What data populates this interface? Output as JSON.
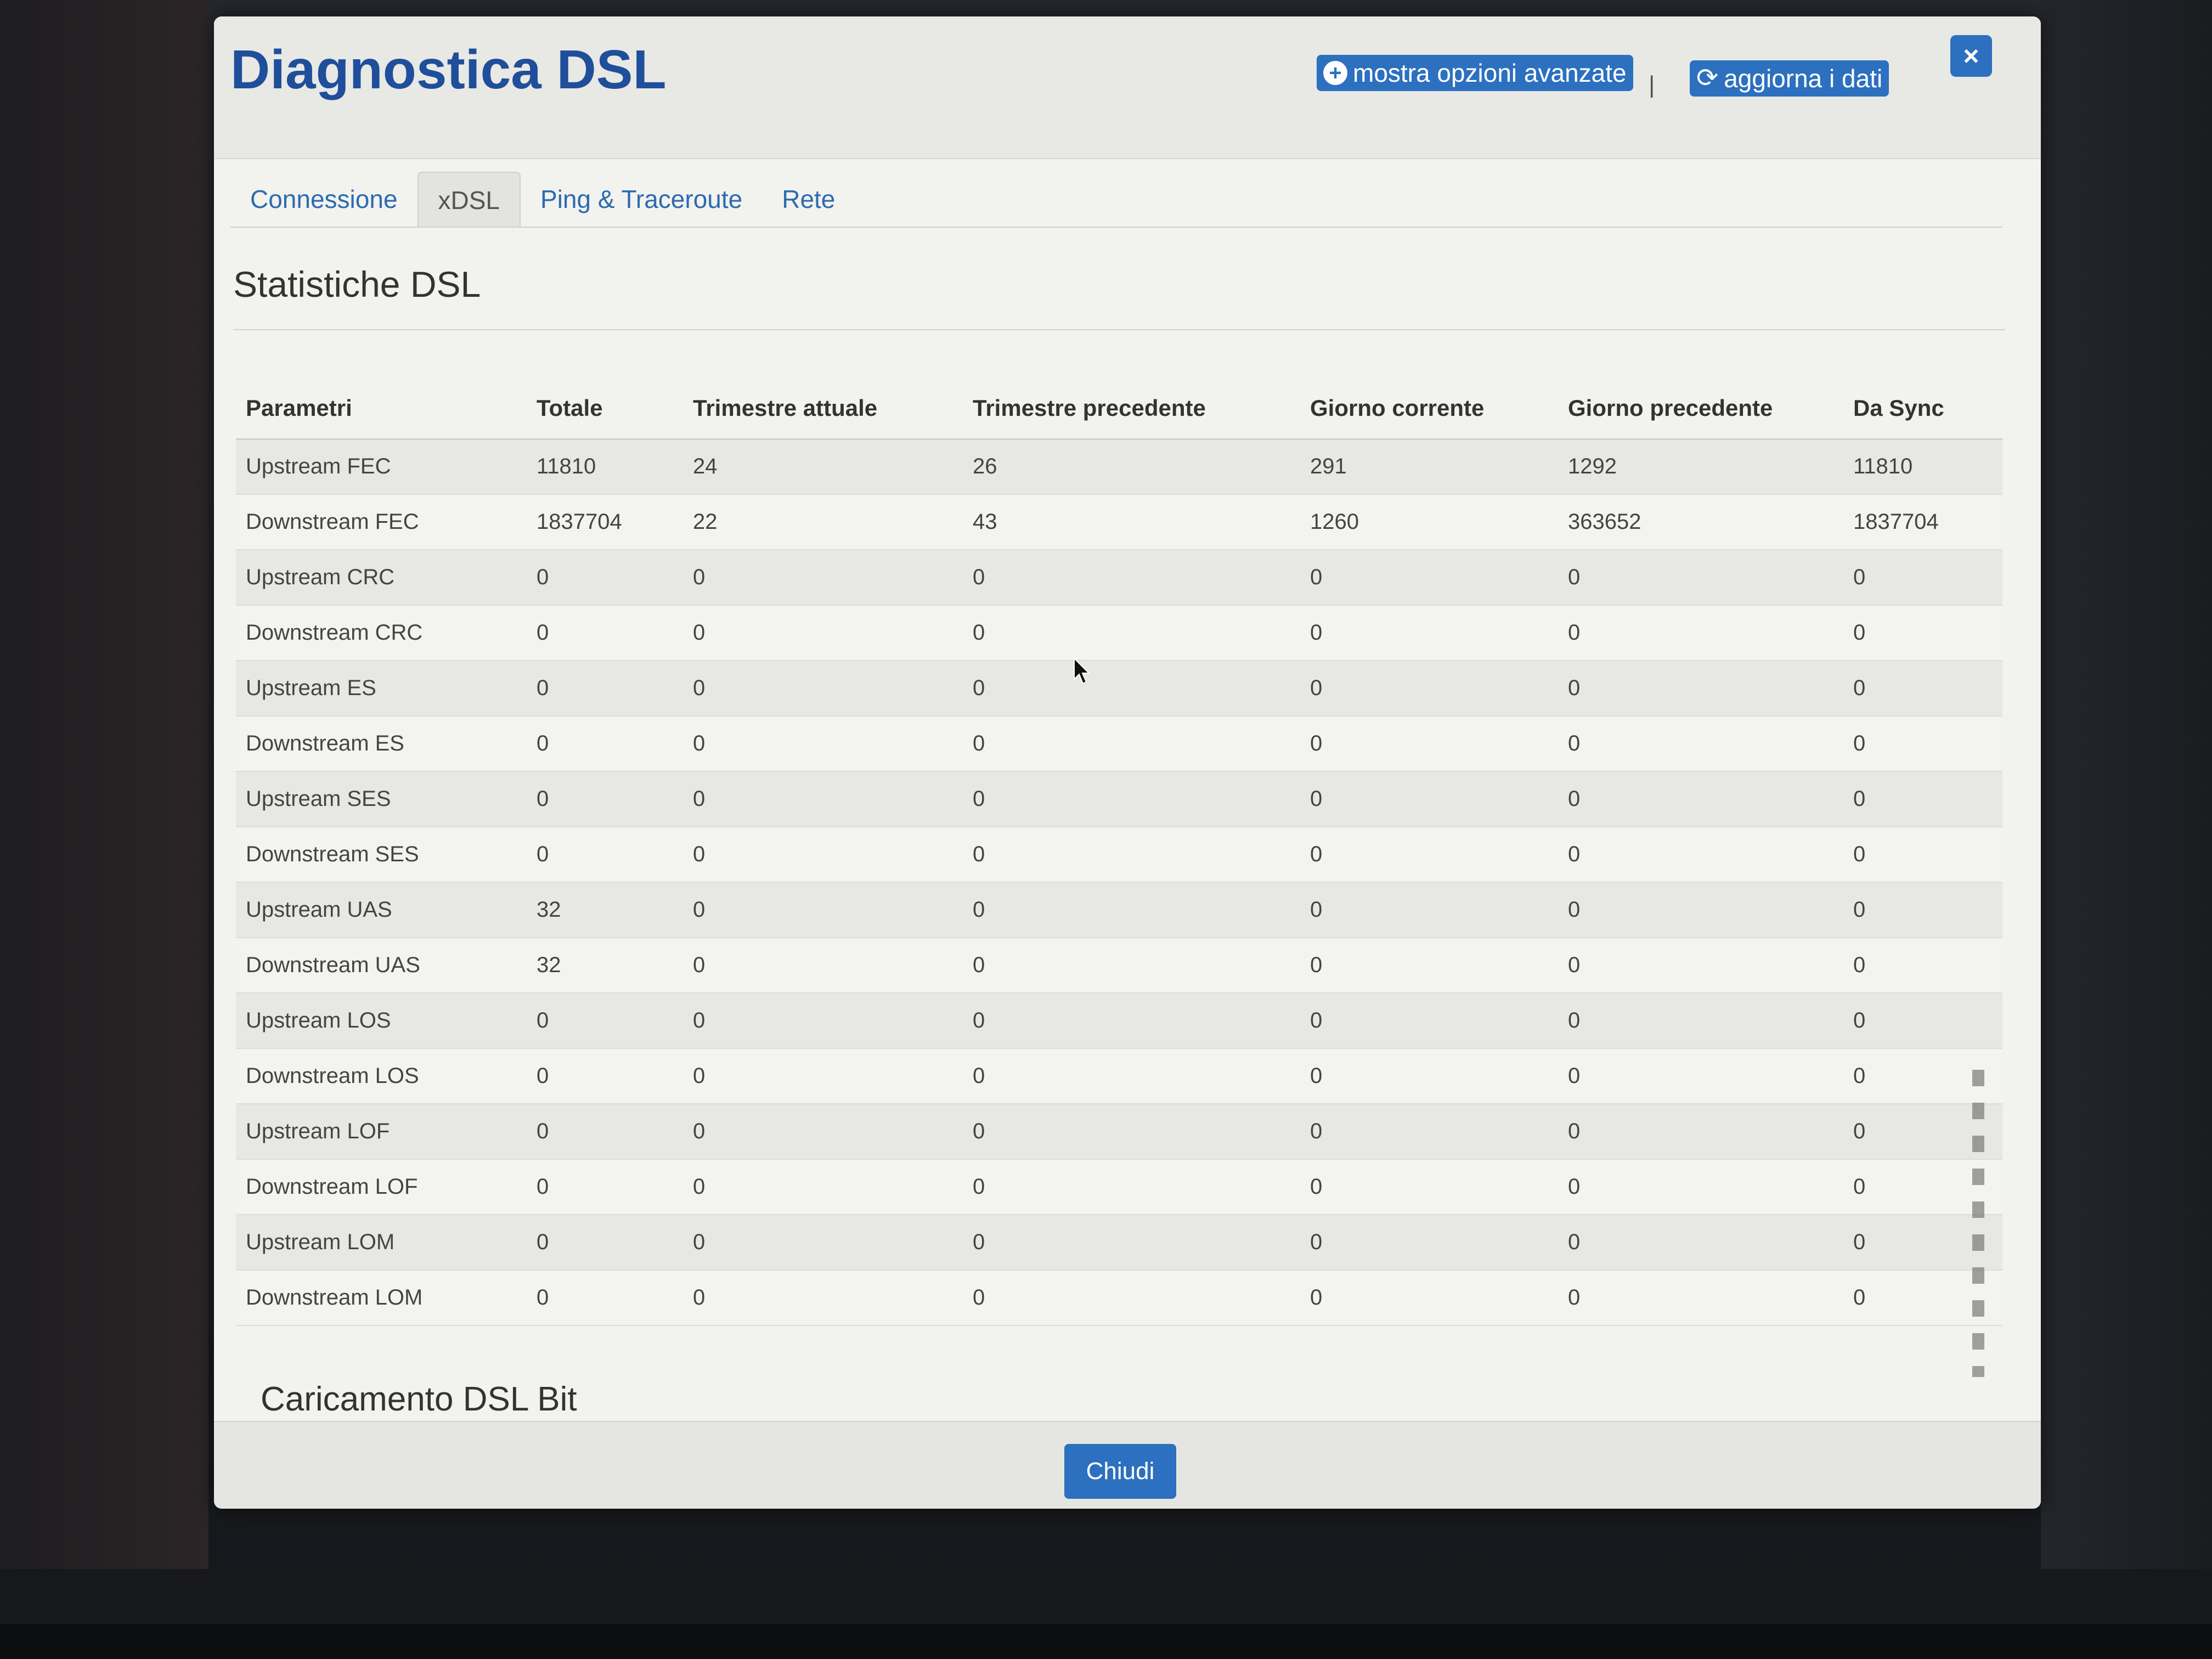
{
  "modal": {
    "title": "Diagnostica DSL",
    "advanced_label": "mostra opzioni avanzate",
    "separator": "|",
    "refresh_label": "aggiorna i dati",
    "close_label": "×"
  },
  "tabs": [
    {
      "label": "Connessione"
    },
    {
      "label": "xDSL"
    },
    {
      "label": "Ping & Traceroute"
    },
    {
      "label": "Rete"
    }
  ],
  "section": {
    "title": "Statistiche DSL",
    "next_title": "Caricamento DSL Bit"
  },
  "table": {
    "headers": [
      "Parametri",
      "Totale",
      "Trimestre attuale",
      "Trimestre precedente",
      "Giorno corrente",
      "Giorno precedente",
      "Da Sync"
    ],
    "rows": [
      [
        "Upstream FEC",
        "11810",
        "24",
        "26",
        "291",
        "1292",
        "11810"
      ],
      [
        "Downstream FEC",
        "1837704",
        "22",
        "43",
        "1260",
        "363652",
        "1837704"
      ],
      [
        "Upstream CRC",
        "0",
        "0",
        "0",
        "0",
        "0",
        "0"
      ],
      [
        "Downstream CRC",
        "0",
        "0",
        "0",
        "0",
        "0",
        "0"
      ],
      [
        "Upstream ES",
        "0",
        "0",
        "0",
        "0",
        "0",
        "0"
      ],
      [
        "Downstream ES",
        "0",
        "0",
        "0",
        "0",
        "0",
        "0"
      ],
      [
        "Upstream SES",
        "0",
        "0",
        "0",
        "0",
        "0",
        "0"
      ],
      [
        "Downstream SES",
        "0",
        "0",
        "0",
        "0",
        "0",
        "0"
      ],
      [
        "Upstream UAS",
        "32",
        "0",
        "0",
        "0",
        "0",
        "0"
      ],
      [
        "Downstream UAS",
        "32",
        "0",
        "0",
        "0",
        "0",
        "0"
      ],
      [
        "Upstream LOS",
        "0",
        "0",
        "0",
        "0",
        "0",
        "0"
      ],
      [
        "Downstream LOS",
        "0",
        "0",
        "0",
        "0",
        "0",
        "0"
      ],
      [
        "Upstream LOF",
        "0",
        "0",
        "0",
        "0",
        "0",
        "0"
      ],
      [
        "Downstream LOF",
        "0",
        "0",
        "0",
        "0",
        "0",
        "0"
      ],
      [
        "Upstream LOM",
        "0",
        "0",
        "0",
        "0",
        "0",
        "0"
      ],
      [
        "Downstream LOM",
        "0",
        "0",
        "0",
        "0",
        "0",
        "0"
      ]
    ]
  },
  "footer": {
    "close_button": "Chiudi"
  },
  "colors": {
    "accent": "#2c70bf",
    "title": "#1f4f9a"
  },
  "icons": {
    "advanced": "plus-circle-icon",
    "refresh": "refresh-icon",
    "close": "close-icon"
  }
}
